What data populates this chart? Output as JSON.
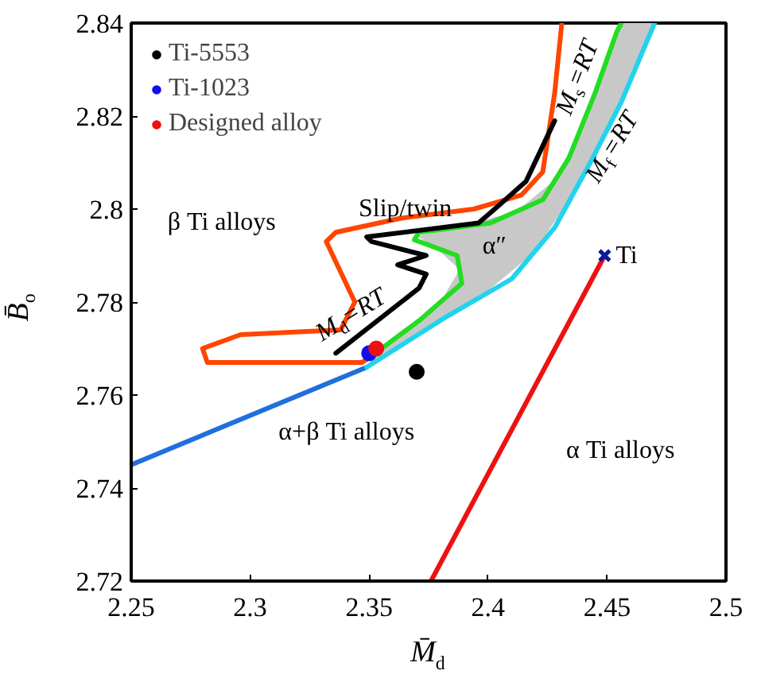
{
  "chart_data": {
    "type": "line",
    "xlabel": "M̄$_{d}$",
    "ylabel": "B̄$_{o}$",
    "xlim": [
      2.25,
      2.5
    ],
    "ylim": [
      2.72,
      2.84
    ],
    "xticks": [
      2.25,
      2.3,
      2.35,
      2.4,
      2.45,
      2.5
    ],
    "yticks": [
      2.72,
      2.74,
      2.76,
      2.78,
      2.8,
      2.82,
      2.84
    ],
    "grid": false,
    "legend": "top left",
    "line_style": "solid",
    "series": [
      {
        "type": "area",
        "color": "#c8c8c8",
        "x": [
          2.3605,
          2.38,
          2.388,
          2.378,
          2.37,
          2.386,
          2.412,
          2.4285,
          2.4395,
          2.4495,
          2.455,
          2.469,
          2.463,
          2.4495,
          2.4355,
          2.419,
          2.3965,
          2.366,
          2.35
        ],
        "values": [
          2.772,
          2.78,
          2.787,
          2.7917,
          2.7942,
          2.796,
          2.7995,
          2.8065,
          2.818,
          2.8315,
          2.84,
          2.84,
          2.8315,
          2.8165,
          2.803,
          2.7905,
          2.781,
          2.7715,
          2.767
        ]
      },
      {
        "color": "#1f6fdc",
        "x": [
          2.25,
          2.349
        ],
        "values": [
          2.745,
          2.766
        ]
      },
      {
        "color": "#22d3ee",
        "x": [
          2.349,
          2.383,
          2.41,
          2.428,
          2.443,
          2.456,
          2.47
        ],
        "values": [
          2.766,
          2.777,
          2.785,
          2.796,
          2.81,
          2.823,
          2.84
        ]
      },
      {
        "color": "#22dd22",
        "x": [
          2.35,
          2.371,
          2.389,
          2.387,
          2.369,
          2.371,
          2.401,
          2.423,
          2.434,
          2.445,
          2.454,
          2.456
        ],
        "values": [
          2.768,
          2.776,
          2.784,
          2.79,
          2.7934,
          2.795,
          2.797,
          2.802,
          2.811,
          2.825,
          2.838,
          2.84
        ]
      },
      {
        "color": "#ff4500",
        "x": [
          2.431,
          2.428,
          2.423,
          2.414,
          2.394,
          2.363,
          2.336,
          2.332,
          2.344,
          2.338,
          2.296,
          2.28,
          2.282,
          2.347,
          2.35
        ],
        "values": [
          2.84,
          2.825,
          2.808,
          2.803,
          2.8,
          2.798,
          2.795,
          2.793,
          2.78,
          2.774,
          2.773,
          2.77,
          2.767,
          2.767,
          2.768
        ]
      },
      {
        "color": "#000000",
        "x": [
          2.336,
          2.371,
          2.374,
          2.362,
          2.374,
          2.351,
          2.349,
          2.396,
          2.405,
          2.416,
          2.428
        ],
        "values": [
          2.769,
          2.783,
          2.786,
          2.788,
          2.79,
          2.793,
          2.794,
          2.797,
          2.801,
          2.806,
          2.819
        ]
      },
      {
        "color": "#ee1111",
        "x": [
          2.376,
          2.449
        ],
        "values": [
          2.72,
          2.79
        ]
      },
      {
        "type": "scatter",
        "marker": "cross",
        "color": "#0a1aa0",
        "x": [
          2.449
        ],
        "values": [
          2.79
        ]
      },
      {
        "type": "scatter",
        "marker": "circle",
        "name": "Ti-5553",
        "color": "#000000",
        "x": [
          2.37
        ],
        "values": [
          2.765
        ]
      },
      {
        "type": "scatter",
        "marker": "circle",
        "name": "Ti-1023",
        "color": "#1010ee",
        "x": [
          2.35
        ],
        "values": [
          2.769
        ]
      },
      {
        "type": "scatter",
        "marker": "circle",
        "name": "Designed alloy",
        "color": "#ee1111",
        "x": [
          2.353
        ],
        "values": [
          2.77
        ]
      }
    ],
    "annotations": [
      "β Ti alloys",
      "Slip/twin",
      "α″",
      "M$_{s}$=RT",
      "M$_{f}$=RT",
      "M$_{d}$=RT",
      "α+β Ti alloys",
      "α Ti alloys",
      {
        "text": "Ti",
        "x": 2.449,
        "y": 2.79
      }
    ]
  }
}
